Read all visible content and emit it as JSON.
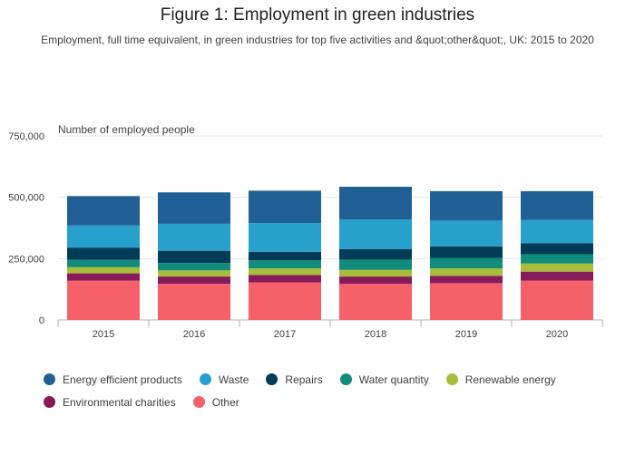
{
  "title": "Figure 1: Employment in green industries",
  "subtitle": "Employment, full time equivalent, in green industries for top five activities and &quot;other&quot;, UK: 2015 to 2020",
  "chart_data": {
    "type": "bar",
    "stacked": true,
    "title": "Figure 1: Employment in green industries",
    "subtitle": "Employment, full time equivalent, in green industries for top five activities and &quot;other&quot;, UK: 2015 to 2020",
    "ylabel": "Number of employed people",
    "xlabel": "",
    "ylim": [
      0,
      750000
    ],
    "yticks": [
      0,
      250000,
      500000,
      750000
    ],
    "ytick_labels": [
      "0",
      "250,000",
      "500,000",
      "750,000"
    ],
    "categories": [
      "2015",
      "2016",
      "2017",
      "2018",
      "2019",
      "2020"
    ],
    "grid": true,
    "legend_position": "bottom",
    "series": [
      {
        "name": "Other",
        "color": "#f66068",
        "values": [
          160000,
          147000,
          153000,
          147000,
          150000,
          160000
        ]
      },
      {
        "name": "Environmental charities",
        "color": "#871a5b",
        "values": [
          30000,
          30000,
          30000,
          30000,
          30000,
          37000
        ]
      },
      {
        "name": "Renewable energy",
        "color": "#a8bd3a",
        "values": [
          25000,
          25000,
          27000,
          27000,
          30000,
          33000
        ]
      },
      {
        "name": "Water quantity",
        "color": "#118c7b",
        "values": [
          30000,
          30000,
          33000,
          42000,
          43000,
          38000
        ]
      },
      {
        "name": "Repairs",
        "color": "#003c57",
        "values": [
          50000,
          50000,
          35000,
          43000,
          47000,
          45000
        ]
      },
      {
        "name": "Waste",
        "color": "#27a0cc",
        "values": [
          90000,
          110000,
          117000,
          120000,
          105000,
          95000
        ]
      },
      {
        "name": "Energy efficient products",
        "color": "#206095",
        "values": [
          120000,
          128000,
          132000,
          134000,
          120000,
          117000
        ]
      }
    ],
    "legend_order": [
      "Energy efficient products",
      "Waste",
      "Repairs",
      "Water quantity",
      "Renewable energy",
      "Environmental charities",
      "Other"
    ]
  }
}
